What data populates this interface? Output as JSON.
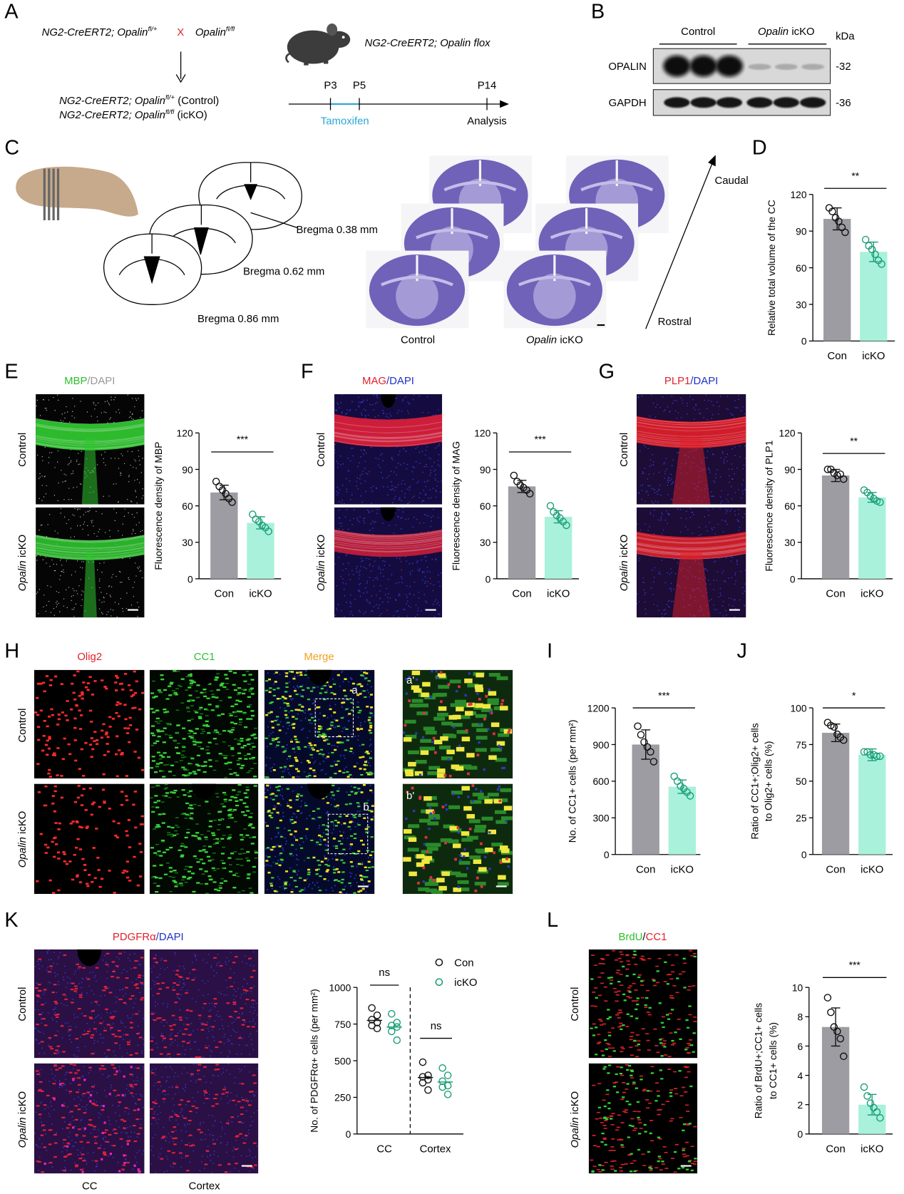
{
  "figure": {
    "panel_letters": [
      "A",
      "B",
      "C",
      "D",
      "E",
      "F",
      "G",
      "H",
      "I",
      "J",
      "K",
      "L"
    ],
    "genotype": {
      "control": "Control",
      "opalin": "Opalin",
      "icko": "icKO"
    },
    "A": {
      "parent": "NG2-CreERT2; Opalin",
      "sup_het": "fl/+",
      "cross": "X",
      "sup_flox": "fl/fl",
      "mouse": "NG2-CreERT2; Opalin flox",
      "control_tag": "(Control)",
      "icko_tag": "(icKO)",
      "timepoints": [
        "P3",
        "P5",
        "P14"
      ],
      "tamoxifen": "Tamoxifen",
      "analysis": "Analysis"
    },
    "B": {
      "kda": "kDa",
      "proteins": [
        "OPALIN",
        "GAPDH"
      ],
      "sizes": [
        "-32",
        "-36"
      ]
    },
    "C": {
      "bregma": [
        "Bregma 0.38 mm",
        "Bregma 0.62 mm",
        "Bregma 0.86 mm"
      ],
      "caudal": "Caudal",
      "rostral": "Rostral"
    },
    "E": {
      "stain": [
        "MBP",
        "/DAPI"
      ]
    },
    "F": {
      "stain": [
        "MAG",
        "/DAPI"
      ]
    },
    "G": {
      "stain": [
        "PLP1",
        "/DAPI"
      ]
    },
    "H": {
      "channels": [
        "Olig2",
        "CC1",
        "Merge"
      ],
      "insets": [
        "a",
        "b",
        "a'",
        "b'"
      ]
    },
    "K": {
      "stain": [
        "PDGFRα",
        "/DAPI"
      ]
    },
    "L": {
      "stain": [
        "BrdU",
        "/",
        "CC1"
      ]
    }
  },
  "chart_data": [
    {
      "type": "bar",
      "ylabel": "Relative total volume of the CC",
      "categories": [
        "Con",
        "icKO"
      ],
      "values": [
        100,
        73
      ],
      "errors": [
        9,
        8
      ],
      "points": [
        [
          109,
          106,
          101,
          98,
          93,
          89
        ],
        [
          83,
          78,
          75,
          71,
          66,
          63
        ]
      ],
      "colors": [
        "#9d9ca2",
        "#a9f1da"
      ],
      "point_colors": [
        "#111111",
        "#1a9e77"
      ],
      "ylim": [
        0,
        120
      ],
      "yticks": [
        0,
        30,
        60,
        90,
        120
      ],
      "significance": "**"
    },
    {
      "type": "bar",
      "ylabel": "Fluorescence density of MBP",
      "categories": [
        "Con",
        "icKO"
      ],
      "values": [
        71,
        46
      ],
      "errors": [
        6,
        5
      ],
      "points": [
        [
          80,
          76,
          73,
          70,
          66,
          63
        ],
        [
          53,
          49,
          47,
          44,
          42,
          39
        ]
      ],
      "colors": [
        "#9d9ca2",
        "#a9f1da"
      ],
      "point_colors": [
        "#111111",
        "#1a9e77"
      ],
      "ylim": [
        0,
        120
      ],
      "yticks": [
        0,
        30,
        60,
        90,
        120
      ],
      "significance": "***"
    },
    {
      "type": "bar",
      "ylabel": "Fluorescence density of MAG",
      "categories": [
        "Con",
        "icKO"
      ],
      "values": [
        76,
        51
      ],
      "errors": [
        5,
        5
      ],
      "points": [
        [
          85,
          80,
          77,
          75,
          73,
          70
        ],
        [
          60,
          55,
          52,
          50,
          47,
          44
        ]
      ],
      "colors": [
        "#9d9ca2",
        "#a9f1da"
      ],
      "point_colors": [
        "#111111",
        "#1a9e77"
      ],
      "ylim": [
        0,
        120
      ],
      "yticks": [
        0,
        30,
        60,
        90,
        120
      ],
      "significance": "***"
    },
    {
      "type": "bar",
      "ylabel": "Fluorescence density of PLP1",
      "categories": [
        "Con",
        "icKO"
      ],
      "values": [
        85,
        67
      ],
      "errors": [
        5,
        4
      ],
      "points": [
        [
          90,
          90,
          87,
          85,
          86,
          82
        ],
        [
          73,
          71,
          68,
          66,
          64,
          63
        ]
      ],
      "colors": [
        "#9d9ca2",
        "#a9f1da"
      ],
      "point_colors": [
        "#111111",
        "#1a9e77"
      ],
      "ylim": [
        0,
        120
      ],
      "yticks": [
        0,
        30,
        60,
        90,
        120
      ],
      "significance": "**"
    },
    {
      "type": "bar",
      "ylabel": "No. of CC1+ cells (per mm²)",
      "categories": [
        "Con",
        "icKO"
      ],
      "values": [
        900,
        555
      ],
      "errors": [
        120,
        55
      ],
      "points": [
        [
          1050,
          980,
          920,
          880,
          840,
          760
        ],
        [
          640,
          600,
          560,
          540,
          510,
          480
        ]
      ],
      "colors": [
        "#9d9ca2",
        "#a9f1da"
      ],
      "point_colors": [
        "#111111",
        "#1a9e77"
      ],
      "ylim": [
        0,
        1200
      ],
      "yticks": [
        0,
        300,
        600,
        900,
        1200
      ],
      "significance": "***"
    },
    {
      "type": "bar",
      "ylabel": [
        "Ratio of CC1+;Olig2+ cells",
        "to Olig2+ cells (%)"
      ],
      "categories": [
        "Con",
        "icKO"
      ],
      "values": [
        83,
        68
      ],
      "errors": [
        6,
        4
      ],
      "points": [
        [
          90,
          88,
          87,
          82,
          80,
          78
        ],
        [
          70,
          70,
          68,
          68,
          67,
          67
        ]
      ],
      "colors": [
        "#9d9ca2",
        "#a9f1da"
      ],
      "point_colors": [
        "#111111",
        "#1a9e77"
      ],
      "ylim": [
        0,
        100
      ],
      "yticks": [
        0,
        25,
        50,
        75,
        100
      ],
      "significance": "*"
    },
    {
      "type": "strip",
      "ylabel": "No. of PDGFRα+ cells (per mm²)",
      "categories": [
        "CC",
        "Cortex"
      ],
      "series": [
        {
          "name": "Con",
          "color": "#111111",
          "values": [
            775,
            385
          ],
          "points": [
            [
              860,
              810,
              780,
              760,
              740,
              720
            ],
            [
              490,
              400,
              390,
              370,
              350,
              300
            ]
          ]
        },
        {
          "name": "icKO",
          "color": "#1a9e77",
          "values": [
            730,
            355
          ],
          "points": [
            [
              820,
              760,
              740,
              730,
              700,
              640
            ],
            [
              450,
              400,
              360,
              330,
              320,
              270
            ]
          ]
        }
      ],
      "ylim": [
        0,
        1000
      ],
      "yticks": [
        0,
        250,
        500,
        750,
        1000
      ],
      "significance": [
        "ns",
        "ns"
      ]
    },
    {
      "type": "bar",
      "ylabel": [
        "Ratio of BrdU+;CC1+ cells",
        "to CC1+ cells (%)"
      ],
      "categories": [
        "Con",
        "icKO"
      ],
      "values": [
        7.3,
        2.0
      ],
      "errors": [
        1.3,
        0.7
      ],
      "points": [
        [
          9.3,
          8.3,
          7.3,
          7.0,
          6.5,
          5.3
        ],
        [
          3.2,
          2.6,
          2.1,
          1.8,
          1.5,
          1.1
        ]
      ],
      "colors": [
        "#9d9ca2",
        "#a9f1da"
      ],
      "point_colors": [
        "#111111",
        "#1a9e77"
      ],
      "ylim": [
        0,
        10
      ],
      "yticks": [
        0,
        2,
        4,
        6,
        8,
        10
      ],
      "significance": "***"
    }
  ]
}
